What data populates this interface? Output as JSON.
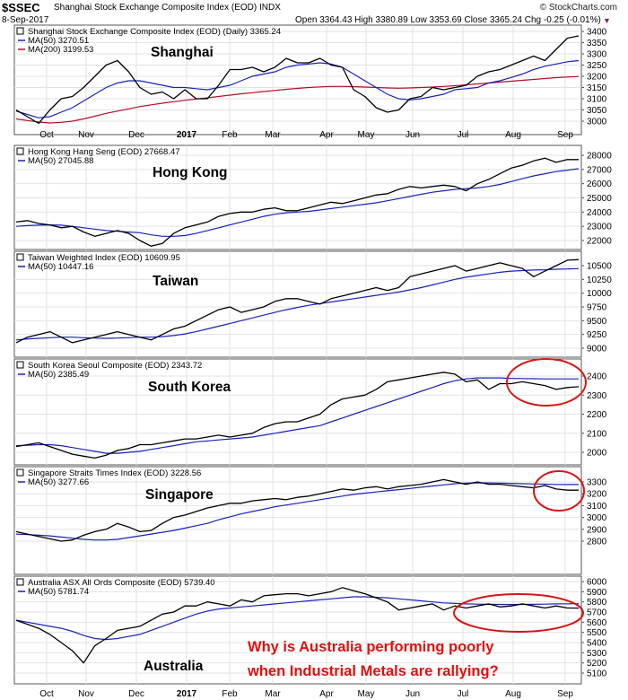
{
  "header": {
    "symbol": "$SSEC",
    "symbol_desc": "Shanghai Stock Exchange Composite Index (EOD) INDX",
    "date": "8-Sep-2017",
    "ohlc": "Open 3364.43  High 3380.89  Low 3353.69  Close 3365.24  Chg -0.25 (-0.01%)",
    "logo": "© StockCharts.com",
    "change_arrow": "▼"
  },
  "x_axis": {
    "months": [
      "Oct",
      "Nov",
      "Dec",
      "2017",
      "Feb",
      "Mar",
      "Apr",
      "May",
      "Jun",
      "Jul",
      "Aug",
      "Sep"
    ]
  },
  "annotation": {
    "text_line1": "Why is Australia performing poorly",
    "text_line2": "when Industrial Metals are rallying?",
    "color": "#e01010"
  },
  "colors": {
    "price": "#000000",
    "ma50": "#1a22b8",
    "ma200": "#b0102a",
    "circle": "#d51616"
  },
  "chart_data": [
    {
      "type": "line",
      "panel": "Shanghai",
      "legend": [
        "Shanghai Stock Exchange Composite Index (EOD) (Daily) 3365.24",
        "MA(50) 3270.51",
        "MA(200) 3199.53"
      ],
      "y_ticks": [
        3000,
        3050,
        3100,
        3150,
        3200,
        3250,
        3300,
        3350,
        3400
      ],
      "ylim": [
        2955,
        3410
      ],
      "price": [
        3050,
        3020,
        2990,
        3050,
        3100,
        3110,
        3150,
        3200,
        3250,
        3270,
        3220,
        3150,
        3120,
        3130,
        3100,
        3140,
        3100,
        3100,
        3160,
        3230,
        3230,
        3240,
        3220,
        3240,
        3280,
        3260,
        3260,
        3280,
        3250,
        3240,
        3140,
        3110,
        3060,
        3040,
        3050,
        3100,
        3110,
        3150,
        3140,
        3150,
        3160,
        3200,
        3220,
        3230,
        3250,
        3270,
        3290,
        3270,
        3320,
        3370,
        3380
      ],
      "ma50": [
        3045,
        3030,
        3015,
        3020,
        3040,
        3060,
        3090,
        3120,
        3150,
        3170,
        3180,
        3180,
        3170,
        3160,
        3150,
        3150,
        3145,
        3140,
        3150,
        3160,
        3180,
        3200,
        3210,
        3220,
        3240,
        3250,
        3255,
        3260,
        3255,
        3240,
        3210,
        3180,
        3150,
        3120,
        3100,
        3095,
        3100,
        3110,
        3120,
        3140,
        3145,
        3150,
        3170,
        3180,
        3195,
        3210,
        3230,
        3245,
        3255,
        3265,
        3270
      ],
      "ma200": [
        3010,
        3003,
        2996,
        2992,
        2995,
        3000,
        3010,
        3022,
        3035,
        3045,
        3055,
        3065,
        3073,
        3080,
        3087,
        3093,
        3099,
        3104,
        3110,
        3116,
        3122,
        3127,
        3132,
        3137,
        3142,
        3146,
        3150,
        3153,
        3155,
        3155,
        3154,
        3152,
        3150,
        3148,
        3147,
        3148,
        3150,
        3152,
        3155,
        3158,
        3162,
        3166,
        3170,
        3174,
        3178,
        3182,
        3186,
        3190,
        3194,
        3197,
        3199
      ]
    },
    {
      "type": "line",
      "panel": "Hong Kong",
      "legend": [
        "Hong Kong Hang Seng (EOD) 27668.47",
        "MA(50) 27045.88"
      ],
      "y_ticks": [
        22000,
        23000,
        24000,
        25000,
        26000,
        27000,
        28000
      ],
      "ylim": [
        21450,
        28600
      ],
      "price": [
        23300,
        23400,
        23200,
        23100,
        22900,
        23000,
        22600,
        22300,
        22500,
        22700,
        22500,
        22000,
        21600,
        21800,
        22500,
        22900,
        23100,
        23300,
        23700,
        23900,
        24000,
        24000,
        24200,
        24300,
        24100,
        24100,
        24300,
        24500,
        24700,
        24600,
        24800,
        25000,
        25200,
        25300,
        25600,
        25800,
        25700,
        25800,
        25900,
        25800,
        25500,
        26000,
        26300,
        26700,
        27100,
        27300,
        27600,
        27800,
        27500,
        27700,
        27700
      ],
      "ma50": [
        23000,
        23050,
        23080,
        23100,
        23080,
        23000,
        22900,
        22800,
        22700,
        22650,
        22600,
        22550,
        22400,
        22300,
        22300,
        22350,
        22500,
        22700,
        22900,
        23100,
        23300,
        23500,
        23700,
        23850,
        23950,
        24000,
        24050,
        24150,
        24250,
        24350,
        24450,
        24550,
        24650,
        24800,
        24950,
        25100,
        25250,
        25400,
        25500,
        25600,
        25650,
        25700,
        25800,
        25950,
        26150,
        26350,
        26550,
        26700,
        26850,
        26950,
        27050
      ]
    },
    {
      "type": "line",
      "panel": "Taiwan",
      "legend": [
        "Taiwan Weighted Index (EOD) 10609.95",
        "MA(50) 10447.16"
      ],
      "y_ticks": [
        9000,
        9250,
        9500,
        9750,
        10000,
        10250,
        10500
      ],
      "ylim": [
        8900,
        10660
      ],
      "price": [
        9100,
        9200,
        9250,
        9300,
        9200,
        9100,
        9150,
        9200,
        9250,
        9300,
        9250,
        9200,
        9150,
        9250,
        9350,
        9400,
        9500,
        9600,
        9700,
        9750,
        9650,
        9700,
        9750,
        9850,
        9900,
        9900,
        9850,
        9800,
        9900,
        9950,
        10000,
        10050,
        10100,
        10050,
        10100,
        10300,
        10350,
        10400,
        10450,
        10500,
        10400,
        10450,
        10500,
        10550,
        10500,
        10450,
        10300,
        10400,
        10500,
        10600,
        10610
      ],
      "ma50": [
        9150,
        9170,
        9180,
        9190,
        9200,
        9200,
        9190,
        9185,
        9180,
        9185,
        9190,
        9200,
        9200,
        9210,
        9230,
        9260,
        9300,
        9350,
        9400,
        9450,
        9500,
        9550,
        9600,
        9650,
        9700,
        9740,
        9780,
        9810,
        9840,
        9870,
        9900,
        9930,
        9960,
        9990,
        10020,
        10060,
        10100,
        10150,
        10200,
        10250,
        10290,
        10320,
        10350,
        10380,
        10400,
        10410,
        10420,
        10425,
        10435,
        10440,
        10447
      ]
    },
    {
      "type": "line",
      "panel": "South Korea",
      "legend": [
        "South Korea Seoul Composite (EOD) 2343.72",
        "MA(50) 2385.49"
      ],
      "y_ticks": [
        2000,
        2100,
        2200,
        2300,
        2400
      ],
      "ylim": [
        1945,
        2475
      ],
      "price": [
        2030,
        2040,
        2050,
        2030,
        2010,
        1990,
        1980,
        1970,
        1985,
        2010,
        2020,
        2040,
        2040,
        2050,
        2060,
        2070,
        2070,
        2080,
        2090,
        2080,
        2090,
        2100,
        2130,
        2150,
        2160,
        2160,
        2180,
        2200,
        2250,
        2280,
        2290,
        2300,
        2330,
        2370,
        2380,
        2390,
        2400,
        2410,
        2420,
        2410,
        2370,
        2380,
        2330,
        2360,
        2360,
        2370,
        2360,
        2350,
        2330,
        2340,
        2344
      ],
      "ma50": [
        2035,
        2037,
        2040,
        2040,
        2035,
        2025,
        2015,
        2005,
        1995,
        1995,
        2000,
        2005,
        2015,
        2025,
        2035,
        2045,
        2055,
        2060,
        2065,
        2070,
        2075,
        2080,
        2090,
        2100,
        2110,
        2120,
        2130,
        2140,
        2160,
        2180,
        2200,
        2220,
        2240,
        2260,
        2280,
        2300,
        2320,
        2340,
        2360,
        2375,
        2385,
        2390,
        2390,
        2390,
        2388,
        2387,
        2386,
        2385,
        2385,
        2385,
        2385
      ]
    },
    {
      "type": "line",
      "panel": "Singapore",
      "legend": [
        "Singapore Straits Times Index (EOD) 3228.56",
        "MA(50) 3277.66"
      ],
      "y_ticks": [
        2800,
        2900,
        3000,
        3100,
        3200,
        3300
      ],
      "ylim": [
        2740,
        3370
      ],
      "price": [
        2880,
        2860,
        2840,
        2820,
        2800,
        2810,
        2850,
        2880,
        2900,
        2950,
        2920,
        2880,
        2890,
        2950,
        3000,
        3020,
        3050,
        3080,
        3100,
        3120,
        3120,
        3140,
        3150,
        3160,
        3150,
        3170,
        3180,
        3200,
        3220,
        3240,
        3230,
        3250,
        3260,
        3240,
        3260,
        3270,
        3280,
        3300,
        3320,
        3300,
        3280,
        3300,
        3280,
        3280,
        3270,
        3260,
        3250,
        3270,
        3240,
        3230,
        3230
      ],
      "ma50": [
        2860,
        2855,
        2850,
        2845,
        2835,
        2825,
        2815,
        2810,
        2810,
        2815,
        2830,
        2845,
        2860,
        2875,
        2890,
        2910,
        2930,
        2950,
        2980,
        3005,
        3030,
        3050,
        3070,
        3090,
        3105,
        3120,
        3135,
        3150,
        3165,
        3180,
        3195,
        3205,
        3215,
        3225,
        3235,
        3245,
        3255,
        3265,
        3275,
        3285,
        3290,
        3292,
        3292,
        3290,
        3288,
        3285,
        3283,
        3281,
        3279,
        3278,
        3278
      ]
    },
    {
      "type": "line",
      "panel": "Australia",
      "legend": [
        "Australia ASX All Ords Composite (EOD) 5739.40",
        "MA(50) 5781.74"
      ],
      "y_ticks": [
        5100,
        5200,
        5300,
        5400,
        5500,
        5600,
        5700,
        5800,
        5900,
        6000
      ],
      "ylim": [
        5080,
        6030
      ],
      "price": [
        5620,
        5580,
        5540,
        5480,
        5400,
        5320,
        5200,
        5370,
        5440,
        5520,
        5540,
        5560,
        5620,
        5680,
        5700,
        5760,
        5760,
        5800,
        5780,
        5760,
        5820,
        5800,
        5860,
        5870,
        5880,
        5880,
        5860,
        5880,
        5900,
        5940,
        5910,
        5880,
        5840,
        5800,
        5720,
        5740,
        5760,
        5780,
        5720,
        5760,
        5740,
        5760,
        5780,
        5750,
        5760,
        5780,
        5760,
        5740,
        5760,
        5740,
        5739
      ],
      "ma50": [
        5620,
        5600,
        5580,
        5560,
        5540,
        5510,
        5470,
        5440,
        5430,
        5440,
        5460,
        5480,
        5520,
        5560,
        5600,
        5640,
        5680,
        5710,
        5730,
        5740,
        5750,
        5760,
        5770,
        5780,
        5790,
        5800,
        5810,
        5820,
        5830,
        5840,
        5850,
        5850,
        5845,
        5840,
        5830,
        5820,
        5810,
        5800,
        5790,
        5785,
        5780,
        5778,
        5776,
        5775,
        5774,
        5775,
        5776,
        5778,
        5780,
        5781,
        5782
      ]
    }
  ]
}
